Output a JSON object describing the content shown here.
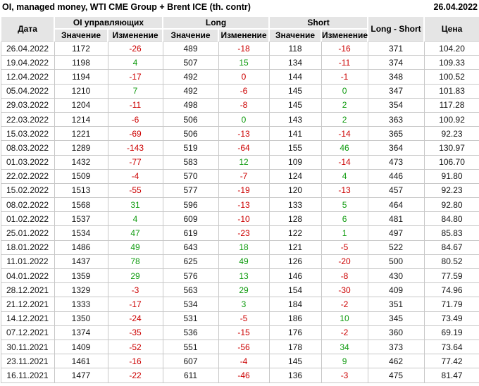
{
  "header": {
    "title": "OI, managed money, WTI CME Group + Brent ICE (th. contr)",
    "report_date": "26.04.2022"
  },
  "colors": {
    "positive": "#0f9b0f",
    "negative": "#cc0000",
    "header_bg": "#e5e5e5",
    "grid": "#c8c8c8"
  },
  "chart_data": {
    "type": "table",
    "title": "OI, managed money, WTI CME Group + Brent ICE (th. contr)",
    "as_of_date": "26.04.2022",
    "column_groups": {
      "oi_group": "OI управляющих",
      "long_group": "Long",
      "short_group": "Short"
    },
    "columns": {
      "date": "Дата",
      "value": "Значение",
      "change": "Изменение",
      "long_short": "Long - Short",
      "price": "Цена"
    },
    "rows": [
      {
        "date": "26.04.2022",
        "oi": "1172",
        "oi_chg": "-26",
        "oi_dir": "neg",
        "long": "489",
        "long_chg": "-18",
        "long_dir": "neg",
        "short": "118",
        "short_chg": "-16",
        "short_dir": "neg",
        "long_short": "371",
        "price": "104.20"
      },
      {
        "date": "19.04.2022",
        "oi": "1198",
        "oi_chg": "4",
        "oi_dir": "pos",
        "long": "507",
        "long_chg": "15",
        "long_dir": "pos",
        "short": "134",
        "short_chg": "-11",
        "short_dir": "neg",
        "long_short": "374",
        "price": "109.33"
      },
      {
        "date": "12.04.2022",
        "oi": "1194",
        "oi_chg": "-17",
        "oi_dir": "neg",
        "long": "492",
        "long_chg": "0",
        "long_dir": "neg",
        "short": "144",
        "short_chg": "-1",
        "short_dir": "neg",
        "long_short": "348",
        "price": "100.52"
      },
      {
        "date": "05.04.2022",
        "oi": "1210",
        "oi_chg": "7",
        "oi_dir": "pos",
        "long": "492",
        "long_chg": "-6",
        "long_dir": "neg",
        "short": "145",
        "short_chg": "0",
        "short_dir": "pos",
        "long_short": "347",
        "price": "101.83"
      },
      {
        "date": "29.03.2022",
        "oi": "1204",
        "oi_chg": "-11",
        "oi_dir": "neg",
        "long": "498",
        "long_chg": "-8",
        "long_dir": "neg",
        "short": "145",
        "short_chg": "2",
        "short_dir": "pos",
        "long_short": "354",
        "price": "117.28"
      },
      {
        "date": "22.03.2022",
        "oi": "1214",
        "oi_chg": "-6",
        "oi_dir": "neg",
        "long": "506",
        "long_chg": "0",
        "long_dir": "pos",
        "short": "143",
        "short_chg": "2",
        "short_dir": "pos",
        "long_short": "363",
        "price": "100.92"
      },
      {
        "date": "15.03.2022",
        "oi": "1221",
        "oi_chg": "-69",
        "oi_dir": "neg",
        "long": "506",
        "long_chg": "-13",
        "long_dir": "neg",
        "short": "141",
        "short_chg": "-14",
        "short_dir": "neg",
        "long_short": "365",
        "price": "92.23"
      },
      {
        "date": "08.03.2022",
        "oi": "1289",
        "oi_chg": "-143",
        "oi_dir": "neg",
        "long": "519",
        "long_chg": "-64",
        "long_dir": "neg",
        "short": "155",
        "short_chg": "46",
        "short_dir": "pos",
        "long_short": "364",
        "price": "130.97"
      },
      {
        "date": "01.03.2022",
        "oi": "1432",
        "oi_chg": "-77",
        "oi_dir": "neg",
        "long": "583",
        "long_chg": "12",
        "long_dir": "pos",
        "short": "109",
        "short_chg": "-14",
        "short_dir": "neg",
        "long_short": "473",
        "price": "106.70"
      },
      {
        "date": "22.02.2022",
        "oi": "1509",
        "oi_chg": "-4",
        "oi_dir": "neg",
        "long": "570",
        "long_chg": "-7",
        "long_dir": "neg",
        "short": "124",
        "short_chg": "4",
        "short_dir": "pos",
        "long_short": "446",
        "price": "91.80"
      },
      {
        "date": "15.02.2022",
        "oi": "1513",
        "oi_chg": "-55",
        "oi_dir": "neg",
        "long": "577",
        "long_chg": "-19",
        "long_dir": "neg",
        "short": "120",
        "short_chg": "-13",
        "short_dir": "neg",
        "long_short": "457",
        "price": "92.23"
      },
      {
        "date": "08.02.2022",
        "oi": "1568",
        "oi_chg": "31",
        "oi_dir": "pos",
        "long": "596",
        "long_chg": "-13",
        "long_dir": "neg",
        "short": "133",
        "short_chg": "5",
        "short_dir": "pos",
        "long_short": "464",
        "price": "92.80"
      },
      {
        "date": "01.02.2022",
        "oi": "1537",
        "oi_chg": "4",
        "oi_dir": "pos",
        "long": "609",
        "long_chg": "-10",
        "long_dir": "neg",
        "short": "128",
        "short_chg": "6",
        "short_dir": "pos",
        "long_short": "481",
        "price": "84.80"
      },
      {
        "date": "25.01.2022",
        "oi": "1534",
        "oi_chg": "47",
        "oi_dir": "pos",
        "long": "619",
        "long_chg": "-23",
        "long_dir": "neg",
        "short": "122",
        "short_chg": "1",
        "short_dir": "pos",
        "long_short": "497",
        "price": "85.83"
      },
      {
        "date": "18.01.2022",
        "oi": "1486",
        "oi_chg": "49",
        "oi_dir": "pos",
        "long": "643",
        "long_chg": "18",
        "long_dir": "pos",
        "short": "121",
        "short_chg": "-5",
        "short_dir": "neg",
        "long_short": "522",
        "price": "84.67"
      },
      {
        "date": "11.01.2022",
        "oi": "1437",
        "oi_chg": "78",
        "oi_dir": "pos",
        "long": "625",
        "long_chg": "49",
        "long_dir": "pos",
        "short": "126",
        "short_chg": "-20",
        "short_dir": "neg",
        "long_short": "500",
        "price": "80.52"
      },
      {
        "date": "04.01.2022",
        "oi": "1359",
        "oi_chg": "29",
        "oi_dir": "pos",
        "long": "576",
        "long_chg": "13",
        "long_dir": "pos",
        "short": "146",
        "short_chg": "-8",
        "short_dir": "neg",
        "long_short": "430",
        "price": "77.59"
      },
      {
        "date": "28.12.2021",
        "oi": "1329",
        "oi_chg": "-3",
        "oi_dir": "neg",
        "long": "563",
        "long_chg": "29",
        "long_dir": "pos",
        "short": "154",
        "short_chg": "-30",
        "short_dir": "neg",
        "long_short": "409",
        "price": "74.96"
      },
      {
        "date": "21.12.2021",
        "oi": "1333",
        "oi_chg": "-17",
        "oi_dir": "neg",
        "long": "534",
        "long_chg": "3",
        "long_dir": "pos",
        "short": "184",
        "short_chg": "-2",
        "short_dir": "neg",
        "long_short": "351",
        "price": "71.79"
      },
      {
        "date": "14.12.2021",
        "oi": "1350",
        "oi_chg": "-24",
        "oi_dir": "neg",
        "long": "531",
        "long_chg": "-5",
        "long_dir": "neg",
        "short": "186",
        "short_chg": "10",
        "short_dir": "pos",
        "long_short": "345",
        "price": "73.49"
      },
      {
        "date": "07.12.2021",
        "oi": "1374",
        "oi_chg": "-35",
        "oi_dir": "neg",
        "long": "536",
        "long_chg": "-15",
        "long_dir": "neg",
        "short": "176",
        "short_chg": "-2",
        "short_dir": "neg",
        "long_short": "360",
        "price": "69.19"
      },
      {
        "date": "30.11.2021",
        "oi": "1409",
        "oi_chg": "-52",
        "oi_dir": "neg",
        "long": "551",
        "long_chg": "-56",
        "long_dir": "neg",
        "short": "178",
        "short_chg": "34",
        "short_dir": "pos",
        "long_short": "373",
        "price": "73.64"
      },
      {
        "date": "23.11.2021",
        "oi": "1461",
        "oi_chg": "-16",
        "oi_dir": "neg",
        "long": "607",
        "long_chg": "-4",
        "long_dir": "neg",
        "short": "145",
        "short_chg": "9",
        "short_dir": "pos",
        "long_short": "462",
        "price": "77.42"
      },
      {
        "date": "16.11.2021",
        "oi": "1477",
        "oi_chg": "-22",
        "oi_dir": "neg",
        "long": "611",
        "long_chg": "-46",
        "long_dir": "neg",
        "short": "136",
        "short_chg": "-3",
        "short_dir": "neg",
        "long_short": "475",
        "price": "81.47"
      }
    ]
  }
}
